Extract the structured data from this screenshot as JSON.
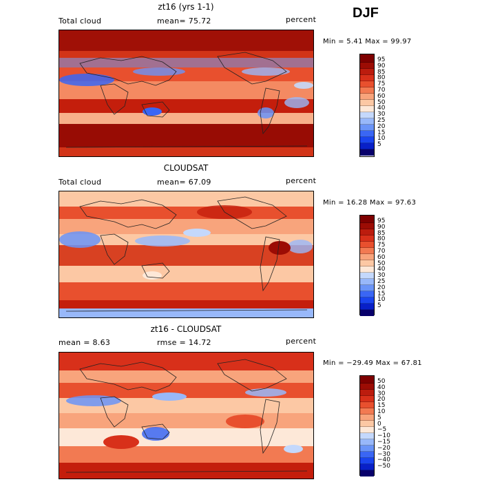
{
  "season": "DJF",
  "colors": {
    "cloud_scale": [
      "#08006b",
      "#0820c8",
      "#1a44ee",
      "#3a66f4",
      "#6a94f8",
      "#98b8fa",
      "#c4d8fc",
      "#e6eefc",
      "#fde8d8",
      "#fcc8a4",
      "#f8a47c",
      "#f27a52",
      "#e8502e",
      "#d8301a",
      "#bc1c0e",
      "#9c0c04",
      "#7e0000"
    ],
    "diff_scale": [
      "#08006b",
      "#0820c8",
      "#1a44ee",
      "#3a66f4",
      "#6a94f8",
      "#98b8fa",
      "#c4d8fc",
      "#e6eefc",
      "#fde8d8",
      "#fcc8a4",
      "#f8a47c",
      "#f27a52",
      "#e8502e",
      "#d8301a",
      "#bc1c0e",
      "#9c0c04",
      "#7e0000"
    ]
  },
  "panels": [
    {
      "title": "zt16 (yrs 1-1)",
      "left_label": "Total cloud",
      "center_label": "mean=  75.72",
      "right_label": "percent",
      "minmax": "Min =   5.41 Max =  99.97",
      "colorbar_labels": [
        "95",
        "90",
        "85",
        "80",
        "75",
        "70",
        "60",
        "50",
        "40",
        "30",
        "25",
        "20",
        "15",
        "10",
        "5"
      ]
    },
    {
      "title": "CLOUDSAT",
      "left_label": "Total cloud",
      "center_label": "mean=  67.09",
      "right_label": "percent",
      "minmax": "Min =  16.28 Max =  97.63",
      "colorbar_labels": [
        "95",
        "90",
        "85",
        "80",
        "75",
        "70",
        "60",
        "50",
        "40",
        "30",
        "25",
        "20",
        "15",
        "10",
        "5"
      ]
    },
    {
      "title": "zt16 - CLOUDSAT",
      "left_label": "mean =   8.63",
      "center_label": "rmse =  14.72",
      "right_label": "percent",
      "minmax": "Min = −29.49 Max =  67.81",
      "colorbar_labels": [
        "50",
        "40",
        "30",
        "20",
        "15",
        "10",
        "5",
        "0",
        "−5",
        "−10",
        "−15",
        "−20",
        "−30",
        "−40",
        "−50"
      ]
    }
  ]
}
